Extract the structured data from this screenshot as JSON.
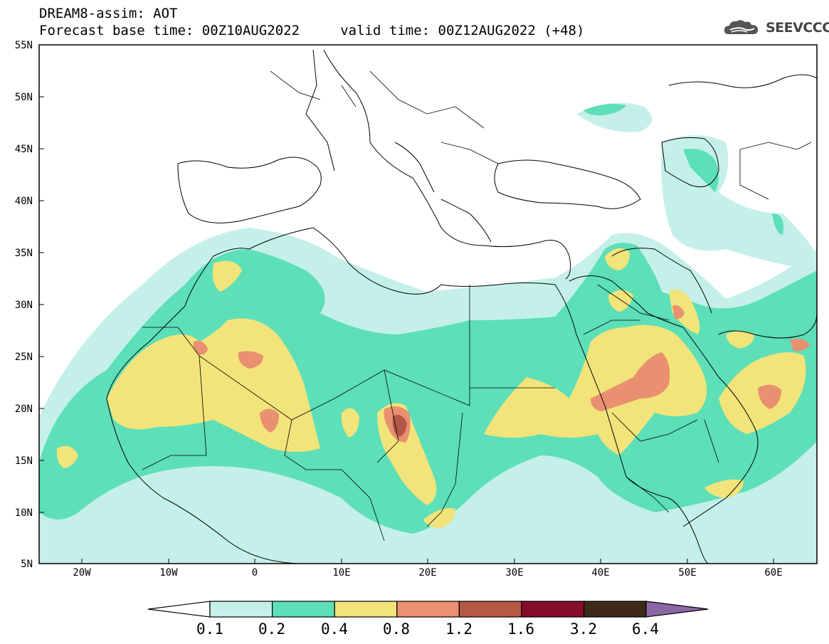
{
  "header": {
    "title": "DREAM8-assim: AOT",
    "subtitle": "Forecast base time: 00Z10AUG2022     valid time: 00Z12AUG2022 (+48)",
    "logo_text": "SEEVCCC",
    "logo_icon": "cloud-logo-icon"
  },
  "map": {
    "variable": "AOT",
    "lon_range": [
      -25,
      65
    ],
    "lat_range": [
      5,
      55
    ],
    "y_ticks": [
      "55N",
      "50N",
      "45N",
      "40N",
      "35N",
      "30N",
      "25N",
      "20N",
      "15N",
      "10N",
      "5N"
    ],
    "x_ticks": [
      "20W",
      "10W",
      "0",
      "10E",
      "20E",
      "30E",
      "40E",
      "50E",
      "60E"
    ]
  },
  "colorbar": {
    "labels": [
      "0.1",
      "0.2",
      "0.4",
      "0.8",
      "1.2",
      "1.6",
      "3.2",
      "6.4"
    ],
    "colors": [
      "#c5f0ea",
      "#5ddfb8",
      "#f2e47a",
      "#e99070",
      "#b25846",
      "#870d2c",
      "#3f2a17",
      "#8c67a6"
    ]
  }
}
